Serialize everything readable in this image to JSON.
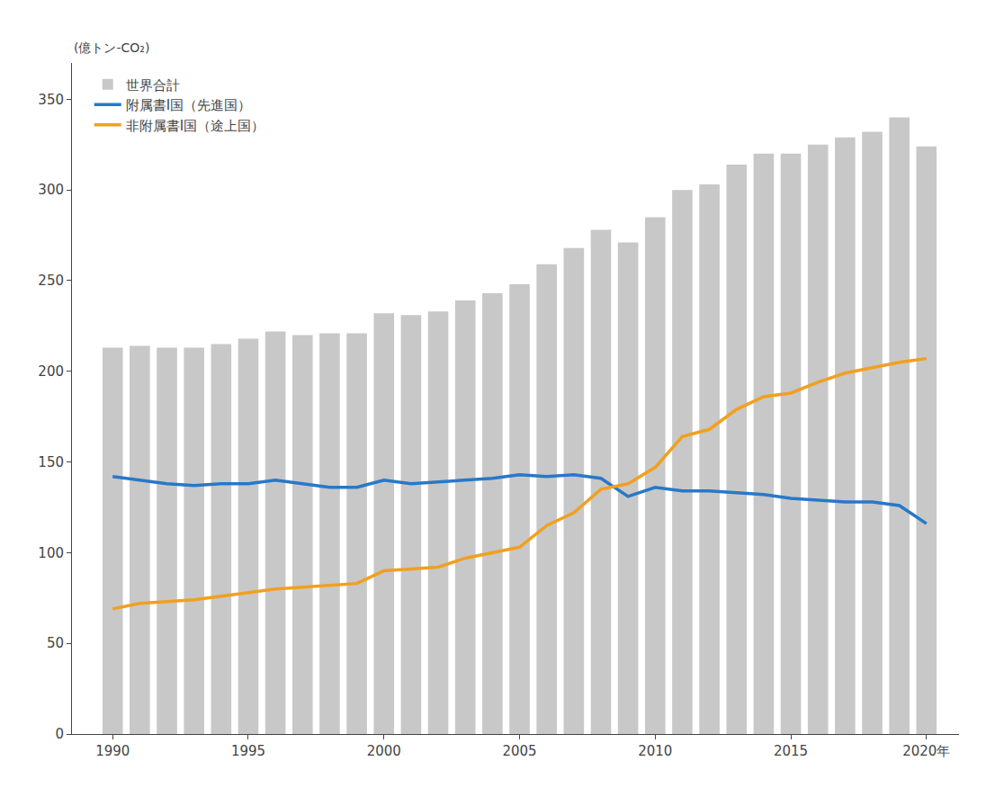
{
  "chart_data": {
    "type": "bar",
    "ylabel": "(億トン-CO₂)",
    "x": [
      1990,
      1991,
      1992,
      1993,
      1994,
      1995,
      1996,
      1997,
      1998,
      1999,
      2000,
      2001,
      2002,
      2003,
      2004,
      2005,
      2006,
      2007,
      2008,
      2009,
      2010,
      2011,
      2012,
      2013,
      2014,
      2015,
      2016,
      2017,
      2018,
      2019,
      2020
    ],
    "series": [
      {
        "name": "世界合計",
        "type": "bar",
        "color": "#c8c8c8",
        "values": [
          213,
          214,
          213,
          213,
          215,
          218,
          222,
          220,
          221,
          221,
          232,
          231,
          233,
          239,
          243,
          248,
          259,
          268,
          278,
          271,
          285,
          300,
          303,
          314,
          320,
          320,
          325,
          329,
          332,
          340,
          324
        ]
      },
      {
        "name": "附属書Ⅰ国（先進国）",
        "type": "line",
        "color": "#2878c8",
        "values": [
          142,
          140,
          138,
          137,
          138,
          138,
          140,
          138,
          136,
          136,
          140,
          138,
          139,
          140,
          141,
          143,
          142,
          143,
          141,
          131,
          136,
          134,
          134,
          133,
          132,
          130,
          129,
          128,
          128,
          126,
          116
        ]
      },
      {
        "name": "非附属書Ⅰ国（途上国）",
        "type": "line",
        "color": "#f0a020",
        "values": [
          69,
          72,
          73,
          74,
          76,
          78,
          80,
          81,
          82,
          83,
          90,
          91,
          92,
          97,
          100,
          103,
          115,
          122,
          135,
          138,
          147,
          164,
          168,
          179,
          186,
          188,
          194,
          199,
          202,
          205,
          207
        ]
      }
    ],
    "xlim": [
      1988.5,
      2021.2
    ],
    "xticks": [
      1990,
      1995,
      2000,
      2005,
      2010,
      2015,
      {
        "value": 2020,
        "label": "2020年"
      }
    ],
    "ylim": [
      0,
      370
    ],
    "yticks": [
      0,
      50,
      100,
      150,
      200,
      250,
      300,
      350
    ],
    "grid": false,
    "legend": "upper left"
  }
}
